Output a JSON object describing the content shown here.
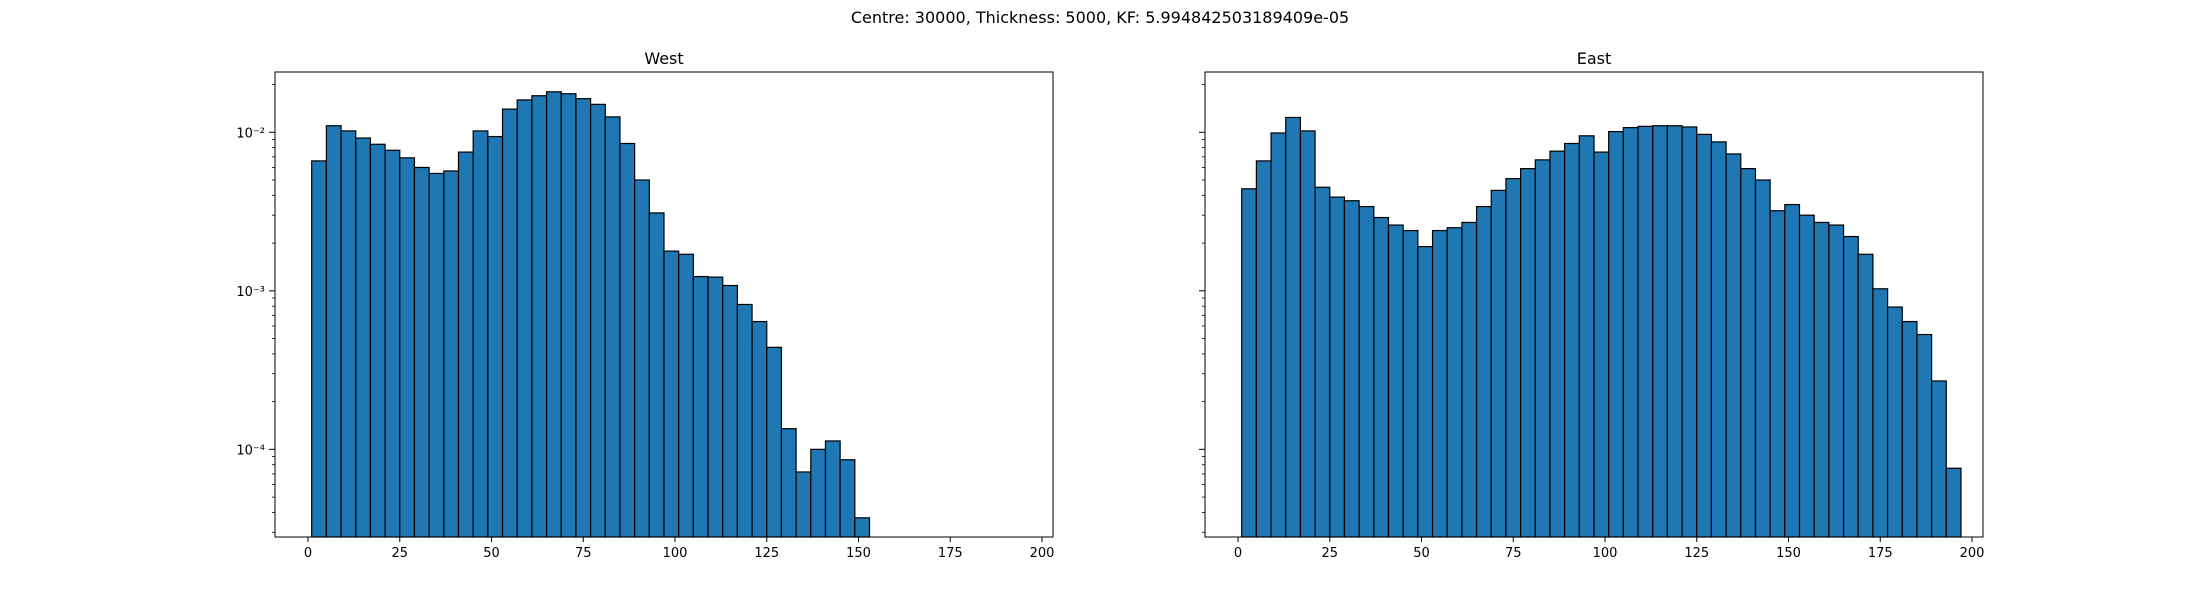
{
  "figure": {
    "suptitle": "Centre: 30000, Thickness: 5000, KF: 5.994842503189409e-05"
  },
  "chart_data": [
    {
      "type": "bar",
      "subtype": "histogram",
      "title": "West",
      "xlabel": "",
      "ylabel": "",
      "yscale": "log",
      "xlim": [
        -9,
        203
      ],
      "ylim": [
        2.8e-05,
        0.024
      ],
      "xticks": [
        0,
        25,
        50,
        75,
        100,
        125,
        150,
        175,
        200
      ],
      "yticks": [
        0.0001,
        0.001,
        0.01
      ],
      "ytick_labels": [
        "10⁻⁴",
        "10⁻³",
        "10⁻²"
      ],
      "bin_start": 1,
      "bin_width": 4,
      "values": [
        0.0066,
        0.011,
        0.0102,
        0.0092,
        0.0084,
        0.0077,
        0.0069,
        0.006,
        0.0055,
        0.0057,
        0.0075,
        0.0102,
        0.0094,
        0.014,
        0.016,
        0.017,
        0.018,
        0.0175,
        0.0163,
        0.015,
        0.0125,
        0.0085,
        0.005,
        0.0031,
        0.00178,
        0.0017,
        0.00123,
        0.00122,
        0.00108,
        0.00082,
        0.00064,
        0.00044,
        0.000135,
        7.2e-05,
        0.0001,
        0.000113,
        8.6e-05,
        3.7e-05
      ],
      "colors": {
        "bar_fill": "#1f77b4",
        "bar_edge": "#000000"
      }
    },
    {
      "type": "bar",
      "subtype": "histogram",
      "title": "East",
      "xlabel": "",
      "ylabel": "",
      "yscale": "log",
      "xlim": [
        -9,
        203
      ],
      "ylim": [
        2.8e-05,
        0.024
      ],
      "xticks": [
        0,
        25,
        50,
        75,
        100,
        125,
        150,
        175,
        200
      ],
      "yticks": [
        0.0001,
        0.001,
        0.01
      ],
      "ytick_labels": [
        "",
        "",
        ""
      ],
      "bin_start": 1,
      "bin_width": 4,
      "values": [
        0.0044,
        0.0066,
        0.0099,
        0.0124,
        0.0102,
        0.0045,
        0.0039,
        0.0037,
        0.0034,
        0.0029,
        0.0026,
        0.0024,
        0.0019,
        0.0024,
        0.0025,
        0.0027,
        0.0034,
        0.0043,
        0.0051,
        0.0059,
        0.0067,
        0.0076,
        0.0085,
        0.0095,
        0.0075,
        0.0101,
        0.0107,
        0.0109,
        0.011,
        0.011,
        0.0108,
        0.0097,
        0.0087,
        0.0073,
        0.0059,
        0.005,
        0.0032,
        0.0035,
        0.003,
        0.0027,
        0.0026,
        0.0022,
        0.0017,
        0.00103,
        0.00079,
        0.00064,
        0.00053,
        0.00027,
        7.6e-05
      ],
      "colors": {
        "bar_fill": "#1f77b4",
        "bar_edge": "#000000"
      }
    }
  ]
}
